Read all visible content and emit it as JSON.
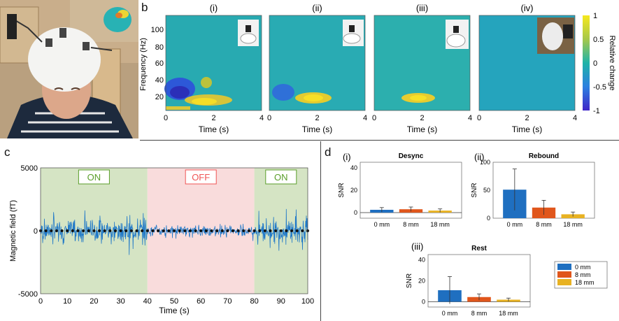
{
  "panels": {
    "a": "a",
    "b": "b",
    "c": "c",
    "d": "d"
  },
  "spectrograms": {
    "labels": [
      "(i)",
      "(ii)",
      "(iii)",
      "(iv)"
    ],
    "ylabel": "Frequency (Hz)",
    "xlabel": "Time (s)",
    "yticks": [
      "100",
      "80",
      "60",
      "40",
      "20"
    ],
    "xticks": [
      "0",
      "2",
      "4"
    ],
    "colorbar": {
      "label": "Relative change",
      "ticks": [
        "1",
        "0.5",
        "0",
        "-0.5",
        "-1"
      ]
    }
  },
  "timeseries": {
    "ylabel": "Magnetic field (fT)",
    "xlabel": "Time (s)",
    "yticks": [
      "5000",
      "0",
      "-5000"
    ],
    "xticks": [
      "0",
      "10",
      "20",
      "30",
      "40",
      "50",
      "60",
      "70",
      "80",
      "90",
      "100"
    ],
    "regions": [
      {
        "label": "ON",
        "start": 0,
        "end": 40,
        "color": "#d5e4c4",
        "text_color": "#5a9e2a"
      },
      {
        "label": "OFF",
        "start": 40,
        "end": 80,
        "color": "#f9dcdc",
        "text_color": "#f05555"
      },
      {
        "label": "ON",
        "start": 80,
        "end": 100,
        "color": "#d5e4c4",
        "text_color": "#5a9e2a"
      }
    ]
  },
  "bars": {
    "legend": [
      "0 mm",
      "8 mm",
      "18 mm"
    ],
    "colors": [
      "#1f6fc0",
      "#e0561c",
      "#e8b222"
    ],
    "categories": [
      "0 mm",
      "8 mm",
      "18 mm"
    ],
    "ylabel": "SNR"
  },
  "chart_data": [
    {
      "type": "bar",
      "title": "Desync",
      "label": "(i)",
      "categories": [
        "0 mm",
        "8 mm",
        "18 mm"
      ],
      "values": [
        2.5,
        3,
        1.8
      ],
      "errors": [
        2,
        2,
        1.5
      ],
      "ylim": [
        -5,
        45
      ],
      "yticks": [
        0,
        20,
        40
      ],
      "ylabel": "SNR"
    },
    {
      "type": "bar",
      "title": "Rebound",
      "label": "(ii)",
      "categories": [
        "0 mm",
        "8 mm",
        "18 mm"
      ],
      "values": [
        51,
        19,
        7
      ],
      "errors": [
        37,
        13,
        4
      ],
      "ylim": [
        0,
        100
      ],
      "yticks": [
        0,
        50,
        100
      ],
      "ylabel": "SNR"
    },
    {
      "type": "bar",
      "title": "Rest",
      "label": "(iii)",
      "categories": [
        "0 mm",
        "8 mm",
        "18 mm"
      ],
      "values": [
        11,
        4.5,
        2
      ],
      "errors": [
        13,
        3,
        1.5
      ],
      "ylim": [
        -5,
        45
      ],
      "yticks": [
        0,
        20,
        40
      ],
      "ylabel": "SNR"
    }
  ]
}
